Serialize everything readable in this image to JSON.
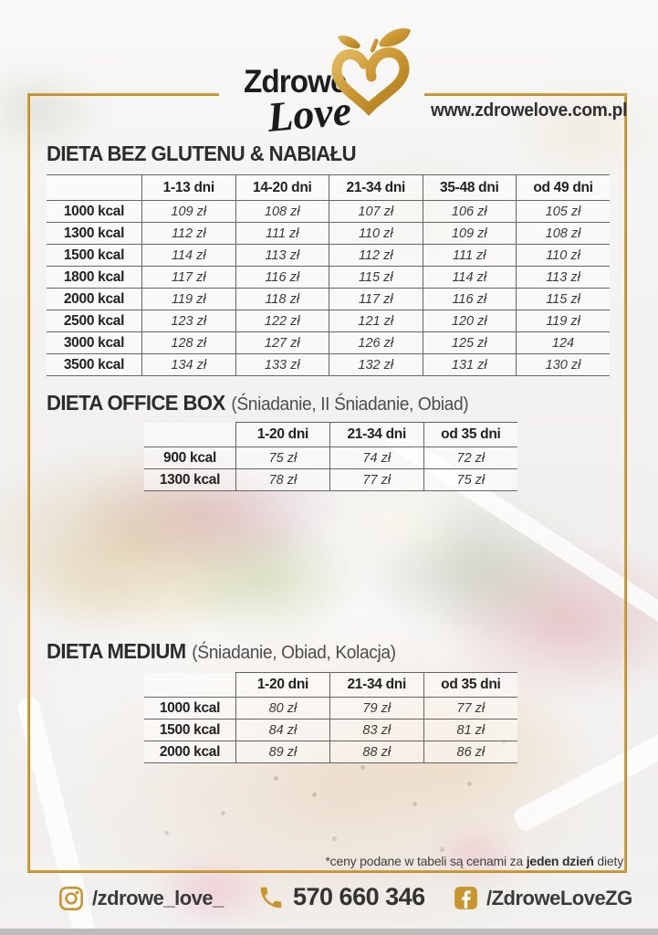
{
  "logo": {
    "word_top": "Zdrowe",
    "word_bottom": "Love",
    "icon": "apple-heart-icon"
  },
  "website": "www.zdrowelove.com.pl",
  "tables": [
    {
      "title": "DIETA BEZ GLUTENU & NABIAŁU",
      "subtitle": "",
      "columns": [
        "1-13 dni",
        "14-20 dni",
        "21-34 dni",
        "35-48 dni",
        "od 49 dni"
      ],
      "rows": [
        {
          "label": "1000 kcal",
          "values": [
            "109 zł",
            "108 zł",
            "107 zł",
            "106 zł",
            "105 zł"
          ]
        },
        {
          "label": "1300 kcal",
          "values": [
            "112 zł",
            "111 zł",
            "110 zł",
            "109 zł",
            "108 zł"
          ]
        },
        {
          "label": "1500 kcal",
          "values": [
            "114 zł",
            "113 zł",
            "112 zł",
            "111 zł",
            "110 zł"
          ]
        },
        {
          "label": "1800 kcal",
          "values": [
            "117 zł",
            "116 zł",
            "115 zł",
            "114 zł",
            "113 zł"
          ]
        },
        {
          "label": "2000 kcal",
          "values": [
            "119 zł",
            "118 zł",
            "117 zł",
            "116 zł",
            "115 zł"
          ]
        },
        {
          "label": "2500 kcal",
          "values": [
            "123 zł",
            "122 zł",
            "121 zł",
            "120 zł",
            "119 zł"
          ]
        },
        {
          "label": "3000 kcal",
          "values": [
            "128 zł",
            "127 zł",
            "126 zł",
            "125 zł",
            "124"
          ]
        },
        {
          "label": "3500 kcal",
          "values": [
            "134 zł",
            "133 zł",
            "132 zł",
            "131 zł",
            "130 zł"
          ]
        }
      ]
    },
    {
      "title": "DIETA OFFICE BOX",
      "subtitle": "(Śniadanie, II Śniadanie, Obiad)",
      "columns": [
        "1-20 dni",
        "21-34 dni",
        "od 35 dni"
      ],
      "rows": [
        {
          "label": "900 kcal",
          "values": [
            "75 zł",
            "74 zł",
            "72 zł"
          ]
        },
        {
          "label": "1300 kcal",
          "values": [
            "78 zł",
            "77 zł",
            "75 zł"
          ]
        }
      ]
    },
    {
      "title": "DIETA MEDIUM",
      "subtitle": "(Śniadanie, Obiad, Kolacja)",
      "columns": [
        "1-20 dni",
        "21-34 dni",
        "od 35 dni"
      ],
      "rows": [
        {
          "label": "1000 kcal",
          "values": [
            "80 zł",
            "79 zł",
            "77 zł"
          ]
        },
        {
          "label": "1500 kcal",
          "values": [
            "84 zł",
            "83 zł",
            "81 zł"
          ]
        },
        {
          "label": "2000 kcal",
          "values": [
            "89 zł",
            "88 zł",
            "86 zł"
          ]
        }
      ]
    }
  ],
  "footnote": {
    "prefix": "*ceny podane w tabeli są cenami za ",
    "bold": "jeden dzień",
    "suffix": " diety"
  },
  "contact": {
    "instagram": "/zdrowe_love_",
    "phone": "570 660 346",
    "facebook": "/ZdroweLoveZG"
  },
  "colors": {
    "gold": "#c9952f",
    "gold_light": "#e0b45a",
    "text_dark": "#2c2c2c",
    "grid_line": "#404040"
  }
}
